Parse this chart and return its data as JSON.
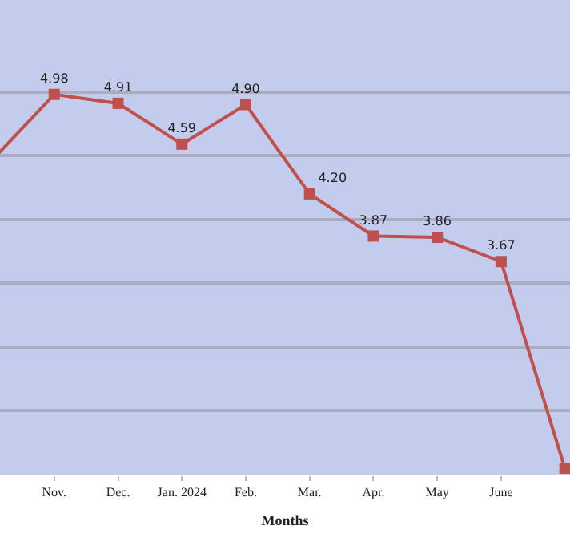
{
  "chart_data": {
    "type": "line",
    "xlabel": "Months",
    "categories": [
      null,
      "Nov.",
      "Dec.",
      "Jan. 2024",
      "Feb.",
      "Mar.",
      "Apr.",
      "May",
      "June",
      null
    ],
    "series": [
      {
        "color": "#c0504d",
        "values": [
          4.45,
          4.98,
          4.91,
          4.59,
          4.9,
          4.2,
          3.87,
          3.86,
          3.67,
          2.05
        ],
        "value_labels": [
          null,
          "4.98",
          "4.91",
          "4.59",
          "4.90",
          "4.20",
          "3.87",
          "3.86",
          "3.67",
          null
        ]
      }
    ],
    "ylim": [
      2.0,
      5.72
    ],
    "yticks": [
      {
        "value": 2.0,
        "label": null
      },
      {
        "value": 2.5,
        "label": null
      },
      {
        "value": 3.0,
        "label": null
      },
      {
        "value": 3.5,
        "label": null
      },
      {
        "value": 4.0,
        "label": null
      },
      {
        "value": 4.5,
        "label": null
      },
      {
        "value": 5.0,
        "label": null
      }
    ],
    "tick_labels": "x",
    "grid": "y",
    "legend": false,
    "marker": "square",
    "line_style": "solid"
  }
}
